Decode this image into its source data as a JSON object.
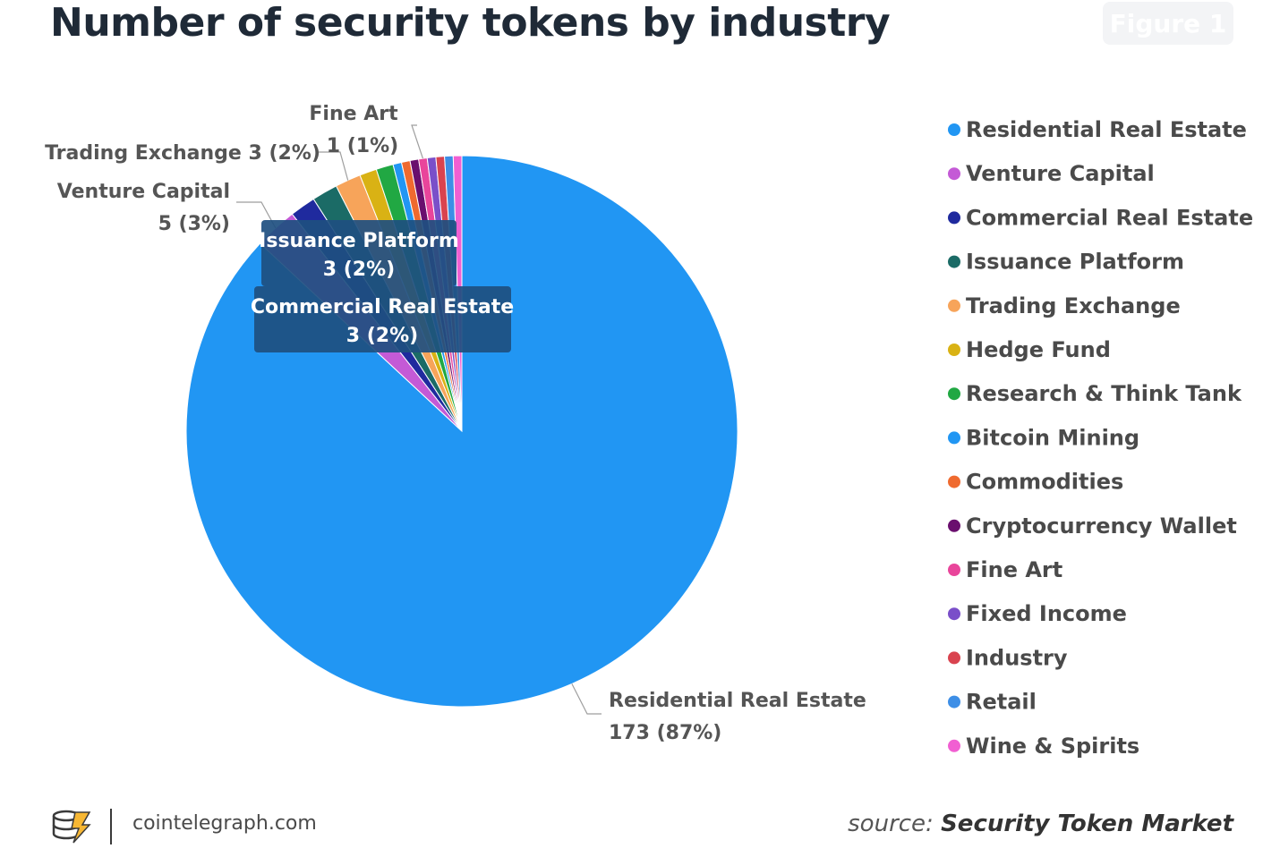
{
  "header": {
    "title": "Number of security tokens by industry",
    "badge": "Figure 1"
  },
  "footer": {
    "site": "cointelegraph.com",
    "source_prefix": "source:",
    "source_name": "Security Token Market"
  },
  "chart_data": {
    "type": "pie",
    "title": "Number of security tokens by industry",
    "slices": [
      {
        "label": "Residential Real Estate",
        "value": 173,
        "color": "#2196f3"
      },
      {
        "label": "Venture Capital",
        "value": 5,
        "color": "#c45ad6"
      },
      {
        "label": "Commercial Real Estate",
        "value": 3,
        "color": "#1f2a9e"
      },
      {
        "label": "Issuance Platform",
        "value": 3,
        "color": "#1b6b66"
      },
      {
        "label": "Trading Exchange",
        "value": 3,
        "color": "#f7a45a"
      },
      {
        "label": "Hedge Fund",
        "value": 2,
        "color": "#d9b214"
      },
      {
        "label": "Research & Think Tank",
        "value": 2,
        "color": "#21a843"
      },
      {
        "label": "Bitcoin Mining",
        "value": 1,
        "color": "#2196f3"
      },
      {
        "label": "Commodities",
        "value": 1,
        "color": "#ef6a2f"
      },
      {
        "label": "Cryptocurrency Wallet",
        "value": 1,
        "color": "#6a0f6e"
      },
      {
        "label": "Fine Art",
        "value": 1,
        "color": "#e9459b"
      },
      {
        "label": "Fixed Income",
        "value": 1,
        "color": "#7a4fc9"
      },
      {
        "label": "Industry",
        "value": 1,
        "color": "#d9434f"
      },
      {
        "label": "Retail",
        "value": 1,
        "color": "#3d8ee6"
      },
      {
        "label": "Wine & Spirits",
        "value": 1,
        "color": "#f15fd2"
      }
    ],
    "data_labels": [
      {
        "series": "Fine Art",
        "lines": [
          "Fine Art",
          "1 (1%)"
        ]
      },
      {
        "series": "Trading Exchange",
        "lines": [
          "Trading Exchange 3 (2%)"
        ]
      },
      {
        "series": "Venture Capital",
        "lines": [
          "Venture Capital",
          "5 (3%)"
        ]
      },
      {
        "series": "Issuance Platform",
        "lines": [
          "Issuance Platform",
          "3 (2%)"
        ]
      },
      {
        "series": "Commercial Real Estate",
        "lines": [
          "Commercial Real Estate",
          "3 (2%)"
        ]
      },
      {
        "series": "Residential Real Estate",
        "lines": [
          "Residential Real Estate",
          "173 (87%)"
        ]
      }
    ],
    "legend": {
      "position": "right"
    }
  }
}
